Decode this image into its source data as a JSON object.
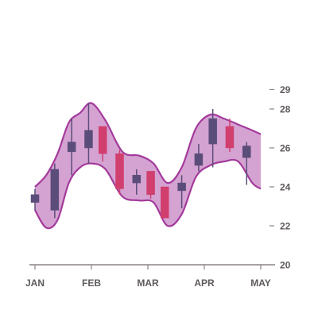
{
  "chart_data": {
    "type": "candlestick",
    "x_ticks": [
      "JAN",
      "FEB",
      "MAR",
      "APR",
      "MAY"
    ],
    "y_ticks": [
      "20",
      "22",
      "24",
      "26",
      "28",
      "29"
    ],
    "ylim": [
      20,
      29
    ],
    "y_axis_position": "right",
    "grid": false,
    "legend": "none",
    "colors": {
      "up": "#5b4d7a",
      "down": "#d13f6f",
      "band_fill": "#c98cc7",
      "band_line": "#a43a9b",
      "axis": "#8a8484",
      "text": "#5f5a5a"
    },
    "candles": [
      {
        "x": 1,
        "open": 23.2,
        "high": 23.9,
        "low": 22.8,
        "close": 23.6
      },
      {
        "x": 1.35,
        "open": 22.8,
        "high": 25.2,
        "low": 22.4,
        "close": 24.9
      },
      {
        "x": 1.65,
        "open": 25.8,
        "high": 27.5,
        "low": 24.6,
        "close": 26.3
      },
      {
        "x": 1.95,
        "open": 26.0,
        "high": 28.3,
        "low": 25.2,
        "close": 26.9
      },
      {
        "x": 2.2,
        "open": 27.1,
        "high": 27.1,
        "low": 25.3,
        "close": 25.7
      },
      {
        "x": 2.5,
        "open": 25.7,
        "high": 25.9,
        "low": 23.6,
        "close": 23.9
      },
      {
        "x": 2.8,
        "open": 24.2,
        "high": 24.9,
        "low": 23.6,
        "close": 24.6
      },
      {
        "x": 3.05,
        "open": 24.8,
        "high": 24.8,
        "low": 23.4,
        "close": 23.6
      },
      {
        "x": 3.3,
        "open": 24.0,
        "high": 24.0,
        "low": 22.4,
        "close": 22.4
      },
      {
        "x": 3.6,
        "open": 23.8,
        "high": 24.6,
        "low": 22.9,
        "close": 24.2
      },
      {
        "x": 3.9,
        "open": 25.1,
        "high": 26.2,
        "low": 24.8,
        "close": 25.7
      },
      {
        "x": 4.15,
        "open": 26.2,
        "high": 28.0,
        "low": 25.0,
        "close": 27.5
      },
      {
        "x": 4.45,
        "open": 27.1,
        "high": 27.5,
        "low": 25.8,
        "close": 26.0
      },
      {
        "x": 4.75,
        "open": 25.5,
        "high": 26.3,
        "low": 24.1,
        "close": 26.1
      }
    ],
    "band": {
      "x": [
        1,
        1.2,
        1.4,
        1.6,
        1.8,
        2,
        2.25,
        2.55,
        2.85,
        3.1,
        3.35,
        3.6,
        3.85,
        4.1,
        4.35,
        4.6,
        4.85,
        5
      ],
      "upper": [
        24.0,
        24.6,
        25.7,
        27.3,
        27.8,
        28.3,
        27.4,
        25.8,
        25.6,
        25.2,
        24.2,
        25.0,
        27.0,
        27.7,
        27.5,
        27.2,
        26.9,
        26.7
      ],
      "lower": [
        22.8,
        21.9,
        22.3,
        24.2,
        25.0,
        25.2,
        24.9,
        23.5,
        23.3,
        23.2,
        22.0,
        22.6,
        24.5,
        25.1,
        25.3,
        25.3,
        24.2,
        23.9
      ]
    }
  }
}
